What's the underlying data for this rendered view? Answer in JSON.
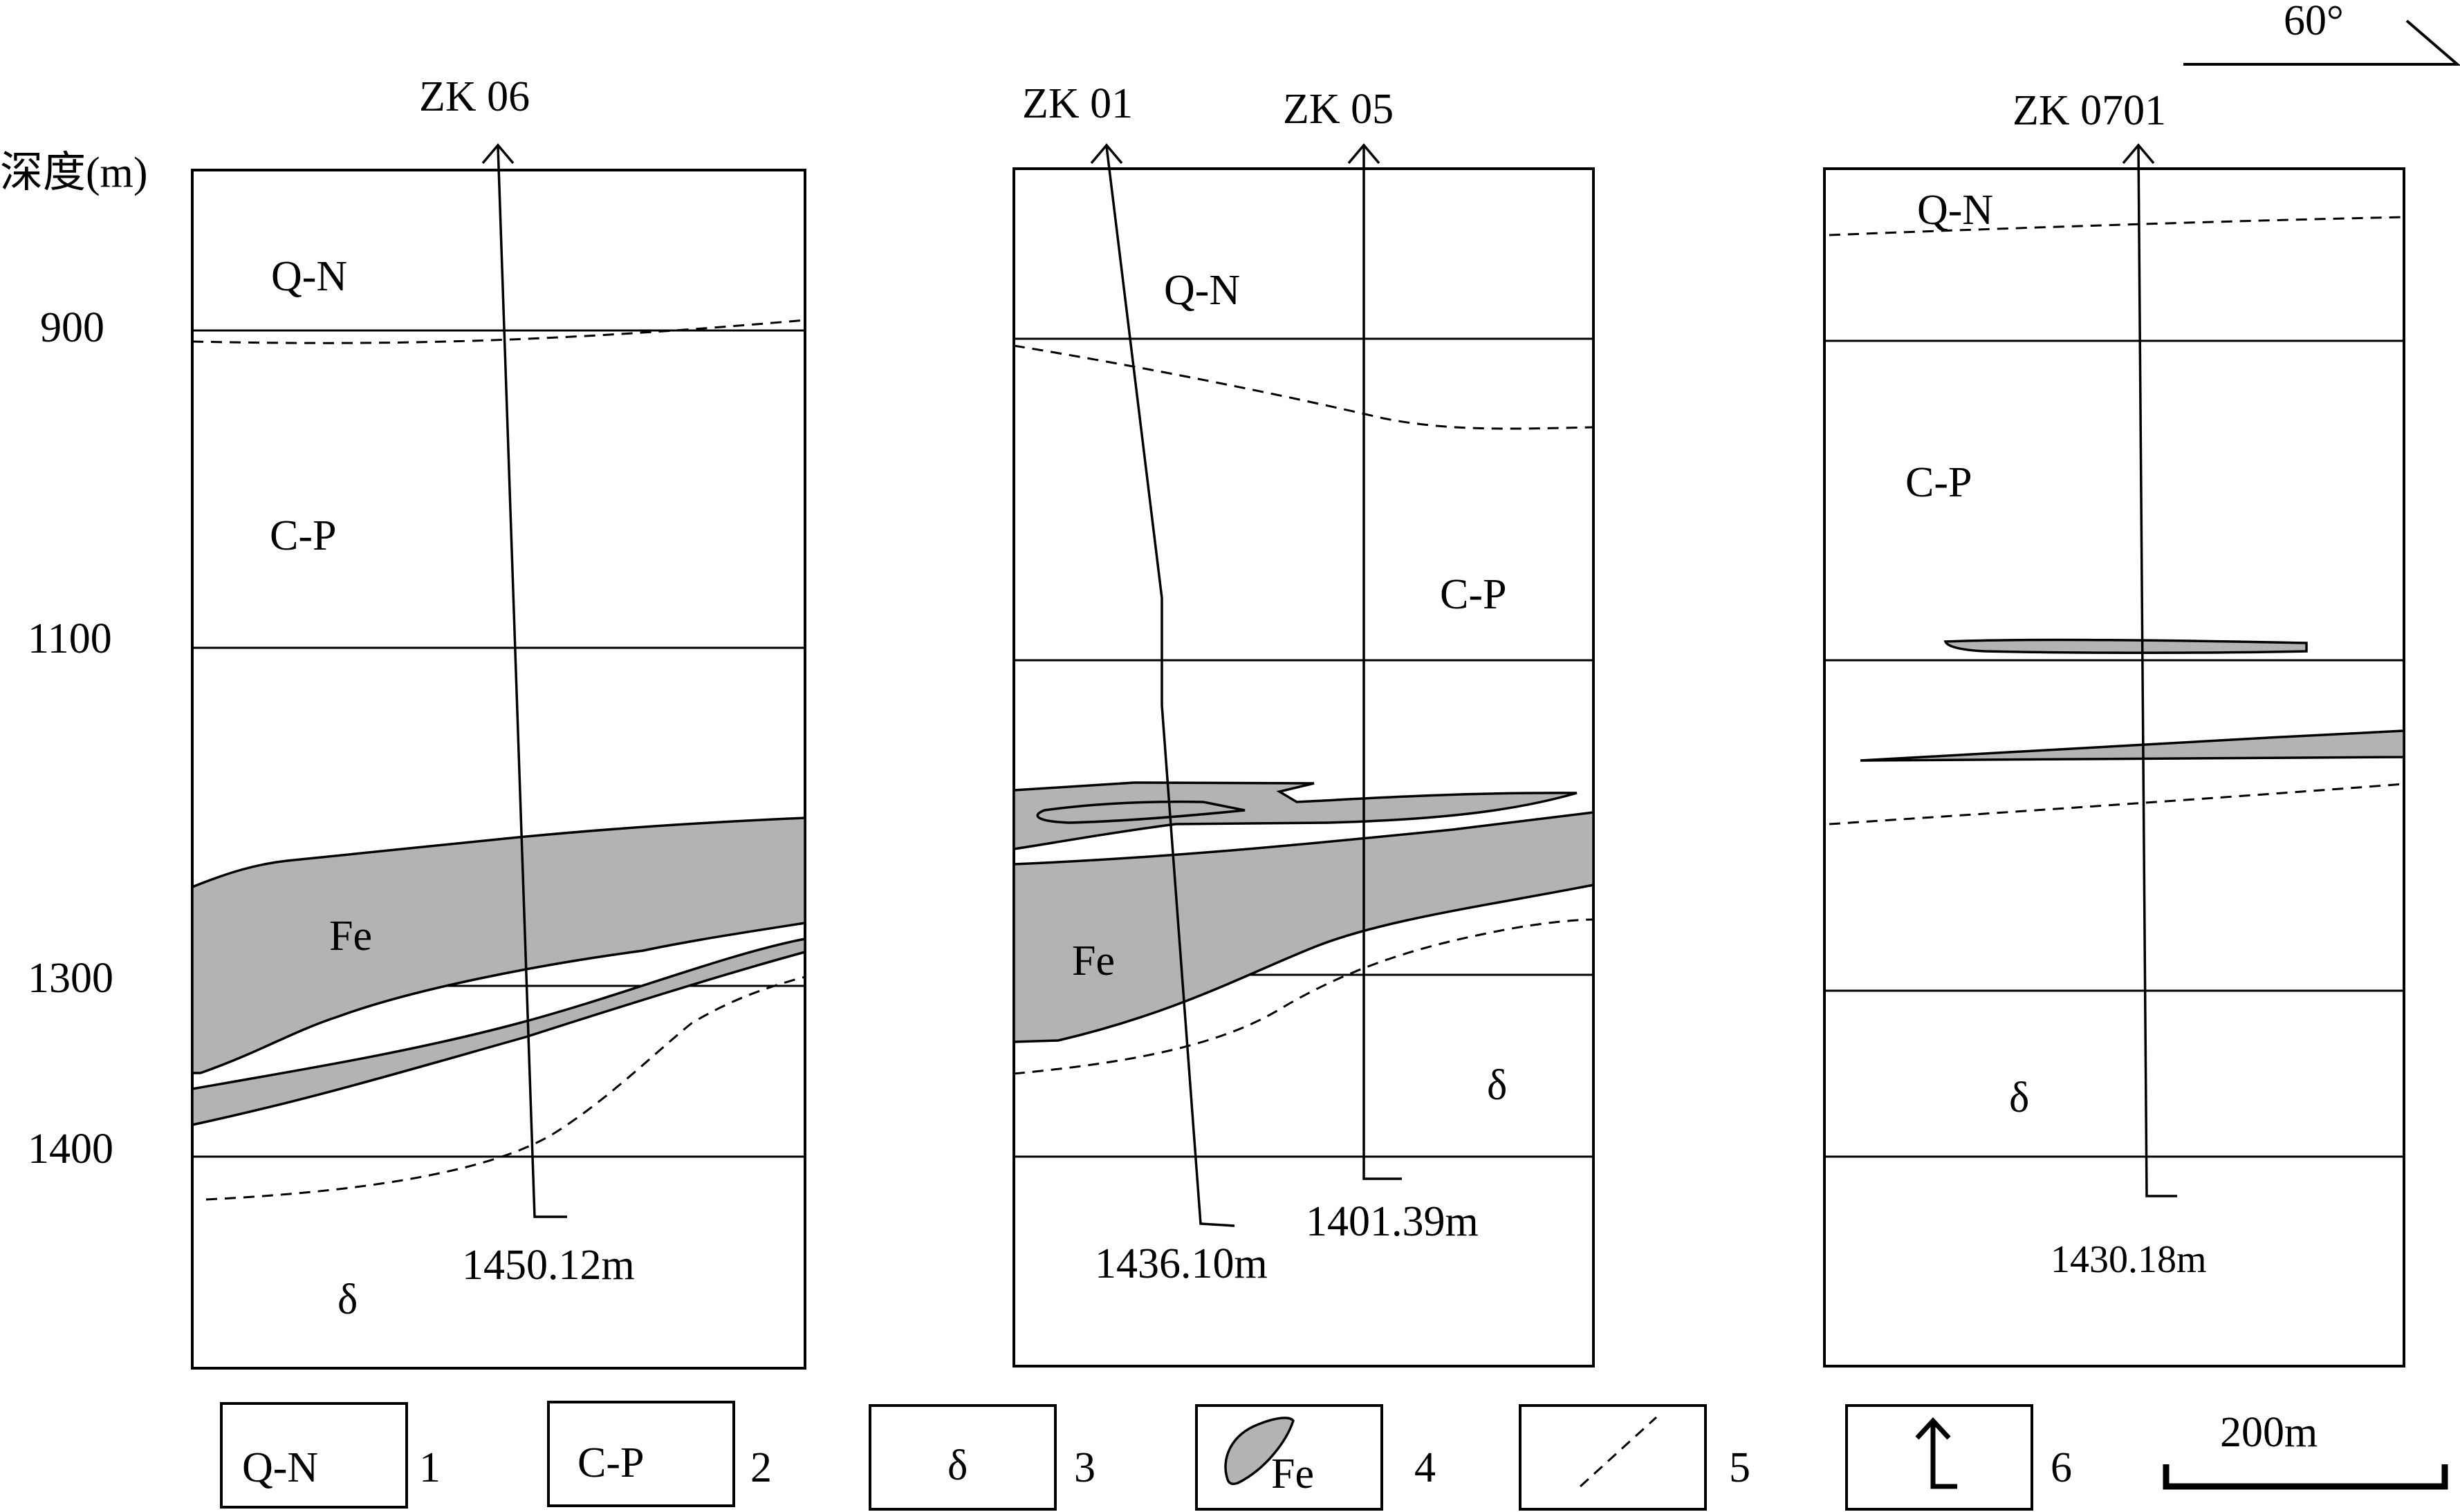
{
  "figure": {
    "depth_axis": {
      "label": "深度(m)",
      "ticks": [
        "900",
        "1100",
        "1300",
        "1400"
      ]
    },
    "orientation": "60°",
    "panels": [
      {
        "holes": [
          {
            "name": "ZK 06",
            "final_depth": "1450.12m"
          }
        ],
        "units": {
          "qn": "Q-N",
          "cp": "C-P",
          "fe": "Fe",
          "delta": "δ"
        }
      },
      {
        "holes": [
          {
            "name": "ZK 01",
            "final_depth": "1436.10m"
          },
          {
            "name": "ZK 05",
            "final_depth": "1401.39m"
          }
        ],
        "units": {
          "qn": "Q-N",
          "cp": "C-P",
          "fe": "Fe",
          "delta": "δ"
        }
      },
      {
        "holes": [
          {
            "name": "ZK 0701",
            "final_depth": "1430.18m"
          }
        ],
        "units": {
          "qn": "Q-N",
          "cp": "C-P",
          "delta": "δ"
        }
      }
    ],
    "legend": [
      {
        "symbol_text": "Q-N",
        "number": "1"
      },
      {
        "symbol_text": "C-P",
        "number": "2"
      },
      {
        "symbol_text": "δ",
        "number": "3"
      },
      {
        "symbol_text": "Fe",
        "number": "4"
      },
      {
        "symbol_text": "",
        "number": "5"
      },
      {
        "symbol_text": "",
        "number": "6"
      }
    ],
    "scale_bar": "200m",
    "colors": {
      "ore_fill": "#b3b3b3",
      "line": "#000000"
    }
  }
}
